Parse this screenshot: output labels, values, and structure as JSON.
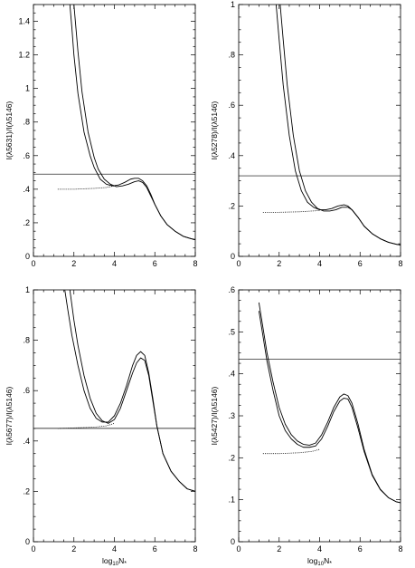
{
  "chart_data": [
    {
      "type": "line",
      "ylabel": "I(λ5631)/I(λ5146)",
      "xlabel": "",
      "xlim": [
        0,
        8
      ],
      "ylim": [
        0,
        1.5
      ],
      "xticks": [
        "0",
        "2",
        "4",
        "6",
        "8"
      ],
      "yticks": [
        "0",
        ".2",
        ".4",
        ".6",
        ".8",
        "1",
        "1.2",
        "1.4"
      ],
      "hline": 0.49,
      "series": [
        {
          "style": "solid",
          "x": [
            1.8,
            1.9,
            2.0,
            2.2,
            2.5,
            2.8,
            3.0,
            3.3,
            3.6,
            3.9,
            4.2,
            4.5,
            4.8,
            5.0,
            5.2,
            5.4,
            5.6,
            5.8,
            6.0,
            6.3,
            6.6,
            7.0,
            7.4,
            7.8,
            8.0
          ],
          "y": [
            1.5,
            1.36,
            1.2,
            0.97,
            0.74,
            0.6,
            0.53,
            0.46,
            0.43,
            0.42,
            0.425,
            0.44,
            0.46,
            0.465,
            0.465,
            0.45,
            0.42,
            0.37,
            0.31,
            0.24,
            0.19,
            0.15,
            0.12,
            0.105,
            0.1
          ]
        },
        {
          "style": "solid",
          "x": [
            2.0,
            2.1,
            2.2,
            2.4,
            2.7,
            3.0,
            3.2,
            3.5,
            3.8,
            4.1,
            4.4,
            4.7,
            5.0,
            5.2,
            5.4,
            5.6,
            5.8,
            6.0,
            6.3,
            6.6,
            7.0,
            7.4,
            7.8,
            8.0
          ],
          "y": [
            1.5,
            1.36,
            1.22,
            0.98,
            0.74,
            0.59,
            0.52,
            0.46,
            0.43,
            0.415,
            0.42,
            0.43,
            0.445,
            0.45,
            0.44,
            0.41,
            0.36,
            0.31,
            0.24,
            0.19,
            0.15,
            0.12,
            0.105,
            0.1
          ]
        },
        {
          "style": "dotted",
          "x": [
            1.2,
            2.0,
            3.0,
            3.6,
            4.0
          ],
          "y": [
            0.4,
            0.4,
            0.405,
            0.41,
            0.42
          ]
        }
      ]
    },
    {
      "type": "line",
      "ylabel": "I(λ5278)/I(λ5146)",
      "xlabel": "",
      "xlim": [
        0,
        8
      ],
      "ylim": [
        0,
        1
      ],
      "xticks": [
        "0",
        "2",
        "4",
        "6",
        "8"
      ],
      "yticks": [
        "0",
        ".2",
        ".4",
        ".6",
        ".8",
        "1"
      ],
      "hline": 0.32,
      "series": [
        {
          "style": "solid",
          "x": [
            1.85,
            2.0,
            2.2,
            2.5,
            2.8,
            3.1,
            3.4,
            3.7,
            4.0,
            4.3,
            4.6,
            4.9,
            5.2,
            5.4,
            5.6,
            5.9,
            6.2,
            6.6,
            7.0,
            7.4,
            7.8,
            8.0
          ],
          "y": [
            1.0,
            0.86,
            0.68,
            0.48,
            0.34,
            0.26,
            0.215,
            0.195,
            0.185,
            0.185,
            0.19,
            0.2,
            0.205,
            0.2,
            0.185,
            0.155,
            0.12,
            0.09,
            0.07,
            0.056,
            0.048,
            0.045
          ]
        },
        {
          "style": "solid",
          "x": [
            2.05,
            2.2,
            2.4,
            2.7,
            3.0,
            3.3,
            3.6,
            3.9,
            4.2,
            4.5,
            4.8,
            5.1,
            5.4,
            5.6,
            5.9,
            6.2,
            6.6,
            7.0,
            7.4,
            7.8,
            8.0
          ],
          "y": [
            1.0,
            0.86,
            0.68,
            0.48,
            0.34,
            0.26,
            0.215,
            0.19,
            0.18,
            0.18,
            0.185,
            0.195,
            0.195,
            0.185,
            0.155,
            0.12,
            0.09,
            0.07,
            0.056,
            0.048,
            0.045
          ]
        },
        {
          "style": "dotted",
          "x": [
            1.2,
            2.0,
            3.0,
            3.6,
            4.0
          ],
          "y": [
            0.175,
            0.175,
            0.177,
            0.18,
            0.182
          ]
        }
      ]
    },
    {
      "type": "line",
      "ylabel": "I(λ5677)/I(λ5146)",
      "xlabel": "log10N*",
      "xlim": [
        0,
        8
      ],
      "ylim": [
        0,
        1
      ],
      "xticks": [
        "0",
        "2",
        "4",
        "6",
        "8"
      ],
      "yticks": [
        "0",
        ".2",
        ".4",
        ".6",
        ".8",
        "1"
      ],
      "hline": 0.45,
      "series": [
        {
          "style": "solid",
          "x": [
            1.55,
            1.7,
            1.9,
            2.2,
            2.5,
            2.8,
            3.1,
            3.4,
            3.7,
            4.0,
            4.3,
            4.6,
            4.9,
            5.1,
            5.3,
            5.5,
            5.7,
            5.9,
            6.1,
            6.4,
            6.8,
            7.2,
            7.6,
            8.0
          ],
          "y": [
            1.0,
            0.92,
            0.82,
            0.7,
            0.6,
            0.53,
            0.49,
            0.475,
            0.475,
            0.5,
            0.55,
            0.62,
            0.7,
            0.74,
            0.755,
            0.74,
            0.67,
            0.57,
            0.46,
            0.35,
            0.28,
            0.24,
            0.21,
            0.2
          ]
        },
        {
          "style": "solid",
          "x": [
            1.8,
            2.0,
            2.2,
            2.5,
            2.8,
            3.1,
            3.4,
            3.7,
            4.0,
            4.3,
            4.6,
            4.9,
            5.1,
            5.3,
            5.5,
            5.7,
            5.9,
            6.1,
            6.4,
            6.8,
            7.2,
            7.6,
            8.0
          ],
          "y": [
            1.0,
            0.88,
            0.78,
            0.66,
            0.57,
            0.51,
            0.48,
            0.47,
            0.485,
            0.53,
            0.6,
            0.67,
            0.71,
            0.73,
            0.72,
            0.66,
            0.56,
            0.46,
            0.35,
            0.28,
            0.24,
            0.21,
            0.2
          ]
        },
        {
          "style": "dotted",
          "x": [
            1.2,
            2.0,
            3.0,
            3.6,
            4.0
          ],
          "y": [
            0.45,
            0.452,
            0.455,
            0.46,
            0.47
          ]
        }
      ]
    },
    {
      "type": "line",
      "ylabel": "I(λ5427)/I(λ5146)",
      "xlabel": "log10N*",
      "xlim": [
        0,
        8
      ],
      "ylim": [
        0,
        0.6
      ],
      "xticks": [
        "0",
        "2",
        "4",
        "6",
        "8"
      ],
      "yticks": [
        "0",
        ".1",
        ".2",
        ".3",
        ".4",
        ".5",
        ".6"
      ],
      "hline": 0.435,
      "series": [
        {
          "style": "solid",
          "x": [
            1.0,
            1.2,
            1.4,
            1.7,
            2.0,
            2.3,
            2.6,
            2.9,
            3.2,
            3.5,
            3.8,
            4.1,
            4.4,
            4.7,
            5.0,
            5.2,
            5.4,
            5.6,
            5.9,
            6.2,
            6.6,
            7.0,
            7.4,
            7.8,
            8.0
          ],
          "y": [
            0.57,
            0.51,
            0.45,
            0.38,
            0.32,
            0.28,
            0.255,
            0.24,
            0.232,
            0.23,
            0.235,
            0.255,
            0.285,
            0.32,
            0.345,
            0.352,
            0.348,
            0.33,
            0.28,
            0.22,
            0.16,
            0.125,
            0.105,
            0.095,
            0.093
          ]
        },
        {
          "style": "solid",
          "x": [
            1.0,
            1.2,
            1.4,
            1.7,
            2.0,
            2.3,
            2.6,
            2.9,
            3.2,
            3.5,
            3.8,
            4.1,
            4.4,
            4.7,
            5.0,
            5.2,
            5.4,
            5.6,
            5.9,
            6.2,
            6.6,
            7.0,
            7.4,
            7.8,
            8.0
          ],
          "y": [
            0.55,
            0.49,
            0.43,
            0.36,
            0.3,
            0.265,
            0.245,
            0.232,
            0.225,
            0.225,
            0.228,
            0.245,
            0.275,
            0.31,
            0.335,
            0.342,
            0.34,
            0.32,
            0.27,
            0.215,
            0.158,
            0.124,
            0.105,
            0.095,
            0.093
          ]
        },
        {
          "style": "dotted",
          "x": [
            1.2,
            2.0,
            3.0,
            3.6,
            4.0
          ],
          "y": [
            0.21,
            0.21,
            0.212,
            0.215,
            0.22
          ]
        }
      ]
    }
  ]
}
